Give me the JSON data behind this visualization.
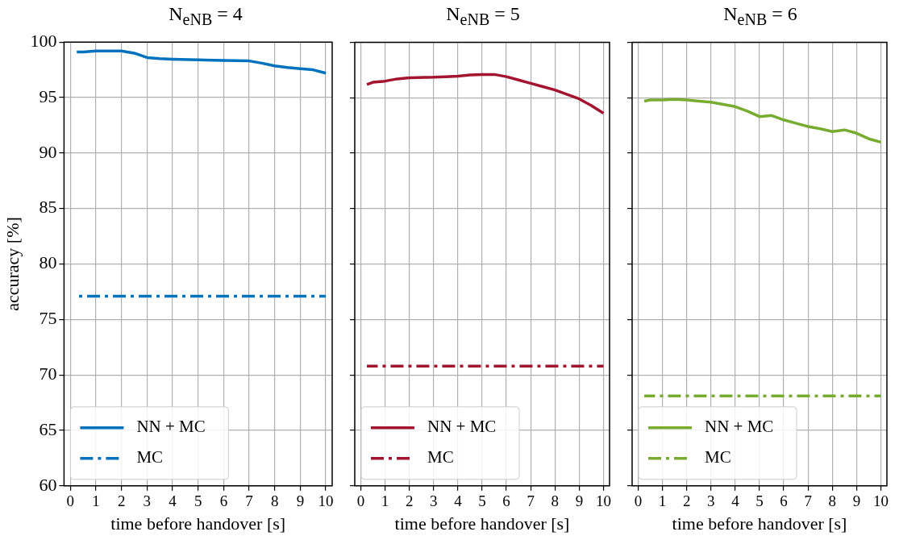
{
  "chart_data": [
    {
      "type": "line",
      "title": "N$_{eNB}$ = 4",
      "xlabel": "time before handover [s]",
      "ylabel": "accuracy [%]",
      "xlim": [
        -0.25,
        10.25
      ],
      "xticks": [
        0,
        1,
        2,
        3,
        4,
        5,
        6,
        7,
        8,
        9,
        10
      ],
      "ylim": [
        60,
        100
      ],
      "yticks": [
        60,
        65,
        70,
        75,
        80,
        85,
        90,
        95,
        100
      ],
      "grid": true,
      "legend": "bottom left",
      "series": [
        {
          "name": "NN + MC",
          "color": "#0072bd",
          "line_style": "solid",
          "x": [
            0.25,
            0.5,
            1,
            1.5,
            2,
            2.5,
            3,
            3.5,
            4,
            5,
            6,
            7,
            7.5,
            8,
            8.5,
            9,
            9.5,
            10
          ],
          "values": [
            99.1,
            99.1,
            99.2,
            99.2,
            99.2,
            99.0,
            98.6,
            98.5,
            98.45,
            98.4,
            98.35,
            98.3,
            98.1,
            97.85,
            97.7,
            97.6,
            97.5,
            97.2
          ]
        },
        {
          "name": "MC",
          "color": "#0072bd",
          "line_style": "dashdot",
          "x": [
            0.25,
            10
          ],
          "values": [
            77.1,
            77.1
          ]
        }
      ]
    },
    {
      "type": "line",
      "title": "N$_{eNB}$ = 5",
      "xlabel": "time before handover [s]",
      "xlim": [
        -0.25,
        10.25
      ],
      "xticks": [
        0,
        1,
        2,
        3,
        4,
        5,
        6,
        7,
        8,
        9,
        10
      ],
      "ylim": [
        60,
        100
      ],
      "yticks": [
        60,
        65,
        70,
        75,
        80,
        85,
        90,
        95,
        100
      ],
      "tick_labels": "x",
      "grid": true,
      "legend": "bottom left",
      "series": [
        {
          "name": "NN + MC",
          "color": "#a2142f",
          "line_style": "solid",
          "x": [
            0.25,
            0.5,
            1,
            1.5,
            2,
            3,
            3.5,
            4,
            4.5,
            5,
            5.5,
            6,
            6.5,
            7,
            7.5,
            8,
            8.5,
            9,
            9.5,
            10
          ],
          "values": [
            96.2,
            96.4,
            96.5,
            96.7,
            96.8,
            96.85,
            96.9,
            96.95,
            97.05,
            97.1,
            97.1,
            96.9,
            96.6,
            96.3,
            96.0,
            95.7,
            95.3,
            94.9,
            94.3,
            93.6
          ]
        },
        {
          "name": "MC",
          "color": "#a2142f",
          "line_style": "dashdot",
          "x": [
            0.25,
            10
          ],
          "values": [
            70.8,
            70.8
          ]
        }
      ]
    },
    {
      "type": "line",
      "title": "N$_{eNB}$ = 6",
      "xlabel": "time before handover [s]",
      "xlim": [
        -0.25,
        10.25
      ],
      "xticks": [
        0,
        1,
        2,
        3,
        4,
        5,
        6,
        7,
        8,
        9,
        10
      ],
      "ylim": [
        60,
        100
      ],
      "yticks": [
        60,
        65,
        70,
        75,
        80,
        85,
        90,
        95,
        100
      ],
      "tick_labels": "x",
      "grid": true,
      "legend": "bottom left",
      "series": [
        {
          "name": "NN + MC",
          "color": "#77ac30",
          "line_style": "solid",
          "x": [
            0.25,
            0.5,
            1,
            1.5,
            2,
            2.5,
            3,
            3.5,
            4,
            4.5,
            5,
            5.5,
            6,
            6.5,
            7,
            7.5,
            8,
            8.5,
            9,
            9.5,
            10
          ],
          "values": [
            94.7,
            94.8,
            94.8,
            94.85,
            94.8,
            94.7,
            94.6,
            94.4,
            94.2,
            93.8,
            93.3,
            93.4,
            93.0,
            92.7,
            92.4,
            92.2,
            91.95,
            92.1,
            91.8,
            91.3,
            91.0
          ]
        },
        {
          "name": "MC",
          "color": "#77ac30",
          "line_style": "dashdot",
          "x": [
            0.25,
            10
          ],
          "values": [
            68.1,
            68.1
          ]
        }
      ]
    }
  ]
}
